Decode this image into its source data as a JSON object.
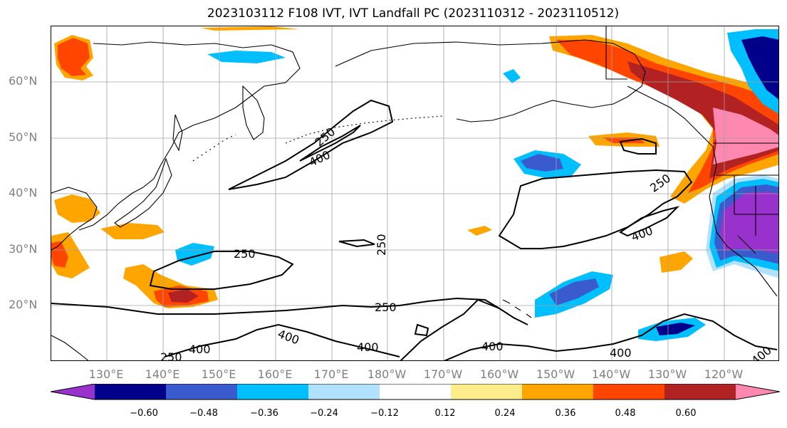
{
  "figure": {
    "title": "2023103112 F108 IVT, IVT Landfall PC (2023110312 - 2023110512)"
  },
  "axes": {
    "lat_labels": [
      "60°N",
      "50°N",
      "40°N",
      "30°N",
      "20°N"
    ],
    "lon_labels": [
      "130°E",
      "140°E",
      "150°E",
      "160°E",
      "170°E",
      "180°W",
      "170°W",
      "160°W",
      "150°W",
      "140°W",
      "130°W",
      "120°W"
    ]
  },
  "contours": {
    "labels": [
      "250",
      "400",
      "250",
      "400",
      "250",
      "250",
      "400",
      "250",
      "400",
      "400",
      "400",
      "400",
      "250",
      "400"
    ]
  },
  "colorbar": {
    "ticks": [
      "−0.60",
      "−0.48",
      "−0.36",
      "−0.24",
      "−0.12",
      "0.12",
      "0.24",
      "0.36",
      "0.48",
      "0.60"
    ],
    "colors": [
      "#9932cc",
      "#00008b",
      "#3a5bcd",
      "#00bfff",
      "#b0e2ff",
      "#ffffff",
      "#ffec8b",
      "#ffa500",
      "#ff4500",
      "#b22222",
      "#ff88b0"
    ]
  }
}
